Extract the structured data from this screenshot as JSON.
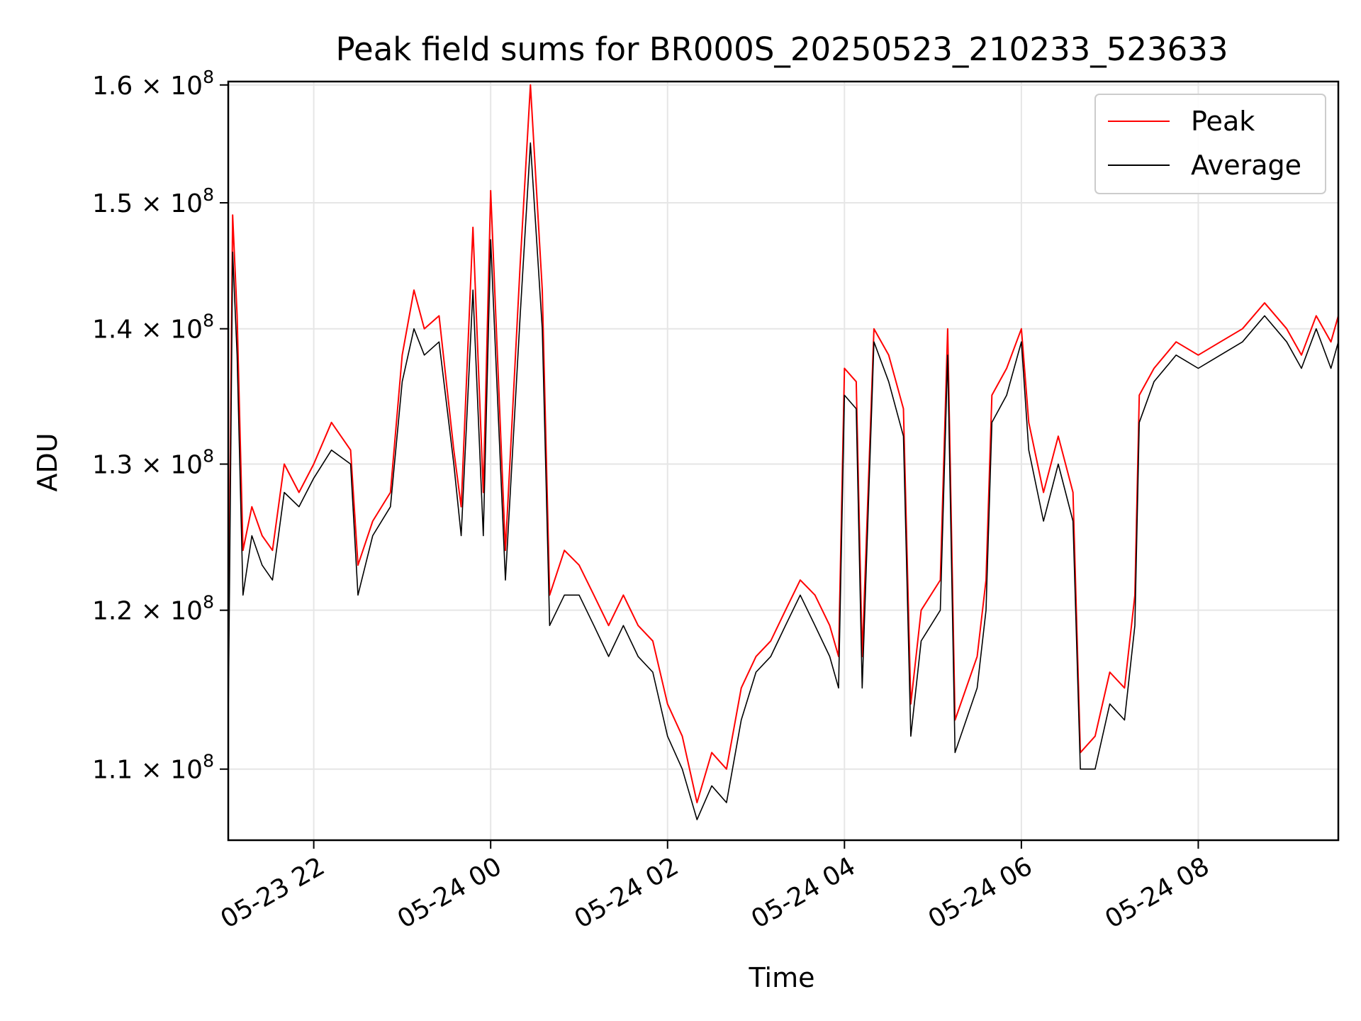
{
  "chart_data": {
    "type": "line",
    "title": "Peak field sums for BR000S_20250523_210233_523633",
    "xlabel": "Time",
    "ylabel": "ADU",
    "yscale": "log",
    "ylim": [
      105800000,
      160300000
    ],
    "xlim": [
      "2025-05-23 21:02",
      "2025-05-24 09:35"
    ],
    "grid": true,
    "legend_position": "top-right",
    "x_ticks": [
      {
        "t": "2025-05-23 22:00",
        "label": "05-23 22"
      },
      {
        "t": "2025-05-24 00:00",
        "label": "05-24 00"
      },
      {
        "t": "2025-05-24 02:00",
        "label": "05-24 02"
      },
      {
        "t": "2025-05-24 04:00",
        "label": "05-24 04"
      },
      {
        "t": "2025-05-24 06:00",
        "label": "05-24 06"
      },
      {
        "t": "2025-05-24 08:00",
        "label": "05-24 08"
      }
    ],
    "y_ticks": [
      {
        "v": 110000000,
        "mant": "1.1",
        "exp": "8"
      },
      {
        "v": 120000000,
        "mant": "1.2",
        "exp": "8"
      },
      {
        "v": 130000000,
        "mant": "1.3",
        "exp": "8"
      },
      {
        "v": 140000000,
        "mant": "1.4",
        "exp": "8"
      },
      {
        "v": 150000000,
        "mant": "1.5",
        "exp": "8"
      },
      {
        "v": 160000000,
        "mant": "1.6",
        "exp": "8"
      }
    ],
    "series": [
      {
        "name": "Peak",
        "color": "#ff0000",
        "x": [
          "2025-05-23 21:02",
          "2025-05-23 21:05",
          "2025-05-23 21:08",
          "2025-05-23 21:12",
          "2025-05-23 21:18",
          "2025-05-23 21:25",
          "2025-05-23 21:32",
          "2025-05-23 21:40",
          "2025-05-23 21:50",
          "2025-05-23 22:00",
          "2025-05-23 22:12",
          "2025-05-23 22:25",
          "2025-05-23 22:30",
          "2025-05-23 22:40",
          "2025-05-23 22:52",
          "2025-05-23 23:00",
          "2025-05-23 23:08",
          "2025-05-23 23:15",
          "2025-05-23 23:25",
          "2025-05-23 23:35",
          "2025-05-23 23:40",
          "2025-05-23 23:48",
          "2025-05-23 23:55",
          "2025-05-24 00:00",
          "2025-05-24 00:10",
          "2025-05-24 00:20",
          "2025-05-24 00:27",
          "2025-05-24 00:35",
          "2025-05-24 00:40",
          "2025-05-24 00:50",
          "2025-05-24 01:00",
          "2025-05-24 01:10",
          "2025-05-24 01:20",
          "2025-05-24 01:30",
          "2025-05-24 01:40",
          "2025-05-24 01:50",
          "2025-05-24 02:00",
          "2025-05-24 02:10",
          "2025-05-24 02:20",
          "2025-05-24 02:30",
          "2025-05-24 02:40",
          "2025-05-24 02:50",
          "2025-05-24 03:00",
          "2025-05-24 03:10",
          "2025-05-24 03:20",
          "2025-05-24 03:30",
          "2025-05-24 03:40",
          "2025-05-24 03:50",
          "2025-05-24 03:56",
          "2025-05-24 04:00",
          "2025-05-24 04:08",
          "2025-05-24 04:12",
          "2025-05-24 04:20",
          "2025-05-24 04:30",
          "2025-05-24 04:40",
          "2025-05-24 04:45",
          "2025-05-24 04:52",
          "2025-05-24 05:05",
          "2025-05-24 05:10",
          "2025-05-24 05:15",
          "2025-05-24 05:30",
          "2025-05-24 05:36",
          "2025-05-24 05:40",
          "2025-05-24 05:50",
          "2025-05-24 06:00",
          "2025-05-24 06:05",
          "2025-05-24 06:15",
          "2025-05-24 06:25",
          "2025-05-24 06:35",
          "2025-05-24 06:40",
          "2025-05-24 06:50",
          "2025-05-24 07:00",
          "2025-05-24 07:10",
          "2025-05-24 07:17",
          "2025-05-24 07:20",
          "2025-05-24 07:30",
          "2025-05-24 07:45",
          "2025-05-24 08:00",
          "2025-05-24 08:15",
          "2025-05-24 08:30",
          "2025-05-24 08:45",
          "2025-05-24 09:00",
          "2025-05-24 09:10",
          "2025-05-24 09:20",
          "2025-05-24 09:30",
          "2025-05-24 09:35"
        ],
        "y": [
          116000000,
          149000000,
          141000000,
          124000000,
          127000000,
          125000000,
          124000000,
          130000000,
          128000000,
          130000000,
          133000000,
          131000000,
          123000000,
          126000000,
          128000000,
          138000000,
          143000000,
          140000000,
          141000000,
          131000000,
          127000000,
          148000000,
          128000000,
          151000000,
          124000000,
          145000000,
          160000000,
          143000000,
          121000000,
          124000000,
          123000000,
          121000000,
          119000000,
          121000000,
          119000000,
          118000000,
          114000000,
          112000000,
          108000000,
          111000000,
          110000000,
          115000000,
          117000000,
          118000000,
          120000000,
          122000000,
          121000000,
          119000000,
          117000000,
          137000000,
          136000000,
          117000000,
          140000000,
          138000000,
          134000000,
          114000000,
          120000000,
          122000000,
          140000000,
          113000000,
          117000000,
          122000000,
          135000000,
          137000000,
          140000000,
          133000000,
          128000000,
          132000000,
          128000000,
          111000000,
          112000000,
          116000000,
          115000000,
          121000000,
          135000000,
          137000000,
          139000000,
          138000000,
          139000000,
          140000000,
          142000000,
          140000000,
          138000000,
          141000000,
          139000000,
          141000000
        ]
      },
      {
        "name": "Average",
        "color": "#000000",
        "x": [
          "2025-05-23 21:02",
          "2025-05-23 21:05",
          "2025-05-23 21:08",
          "2025-05-23 21:12",
          "2025-05-23 21:18",
          "2025-05-23 21:25",
          "2025-05-23 21:32",
          "2025-05-23 21:40",
          "2025-05-23 21:50",
          "2025-05-23 22:00",
          "2025-05-23 22:12",
          "2025-05-23 22:25",
          "2025-05-23 22:30",
          "2025-05-23 22:40",
          "2025-05-23 22:52",
          "2025-05-23 23:00",
          "2025-05-23 23:08",
          "2025-05-23 23:15",
          "2025-05-23 23:25",
          "2025-05-23 23:35",
          "2025-05-23 23:40",
          "2025-05-23 23:48",
          "2025-05-23 23:55",
          "2025-05-24 00:00",
          "2025-05-24 00:10",
          "2025-05-24 00:20",
          "2025-05-24 00:27",
          "2025-05-24 00:35",
          "2025-05-24 00:40",
          "2025-05-24 00:50",
          "2025-05-24 01:00",
          "2025-05-24 01:10",
          "2025-05-24 01:20",
          "2025-05-24 01:30",
          "2025-05-24 01:40",
          "2025-05-24 01:50",
          "2025-05-24 02:00",
          "2025-05-24 02:10",
          "2025-05-24 02:20",
          "2025-05-24 02:30",
          "2025-05-24 02:40",
          "2025-05-24 02:50",
          "2025-05-24 03:00",
          "2025-05-24 03:10",
          "2025-05-24 03:20",
          "2025-05-24 03:30",
          "2025-05-24 03:40",
          "2025-05-24 03:50",
          "2025-05-24 03:56",
          "2025-05-24 04:00",
          "2025-05-24 04:08",
          "2025-05-24 04:12",
          "2025-05-24 04:20",
          "2025-05-24 04:30",
          "2025-05-24 04:40",
          "2025-05-24 04:45",
          "2025-05-24 04:52",
          "2025-05-24 05:05",
          "2025-05-24 05:10",
          "2025-05-24 05:15",
          "2025-05-24 05:30",
          "2025-05-24 05:36",
          "2025-05-24 05:40",
          "2025-05-24 05:50",
          "2025-05-24 06:00",
          "2025-05-24 06:05",
          "2025-05-24 06:15",
          "2025-05-24 06:25",
          "2025-05-24 06:35",
          "2025-05-24 06:40",
          "2025-05-24 06:50",
          "2025-05-24 07:00",
          "2025-05-24 07:10",
          "2025-05-24 07:17",
          "2025-05-24 07:20",
          "2025-05-24 07:30",
          "2025-05-24 07:45",
          "2025-05-24 08:00",
          "2025-05-24 08:15",
          "2025-05-24 08:30",
          "2025-05-24 08:45",
          "2025-05-24 09:00",
          "2025-05-24 09:10",
          "2025-05-24 09:20",
          "2025-05-24 09:30",
          "2025-05-24 09:35"
        ],
        "y": [
          113000000,
          146000000,
          138000000,
          121000000,
          125000000,
          123000000,
          122000000,
          128000000,
          127000000,
          129000000,
          131000000,
          130000000,
          121000000,
          125000000,
          127000000,
          136000000,
          140000000,
          138000000,
          139000000,
          130000000,
          125000000,
          143000000,
          125000000,
          147000000,
          122000000,
          141000000,
          155000000,
          140000000,
          119000000,
          121000000,
          121000000,
          119000000,
          117000000,
          119000000,
          117000000,
          116000000,
          112000000,
          110000000,
          107000000,
          109000000,
          108000000,
          113000000,
          116000000,
          117000000,
          119000000,
          121000000,
          119000000,
          117000000,
          115000000,
          135000000,
          134000000,
          115000000,
          139000000,
          136000000,
          132000000,
          112000000,
          118000000,
          120000000,
          138000000,
          111000000,
          115000000,
          120000000,
          133000000,
          135000000,
          139000000,
          131000000,
          126000000,
          130000000,
          126000000,
          110000000,
          110000000,
          114000000,
          113000000,
          119000000,
          133000000,
          136000000,
          138000000,
          137000000,
          138000000,
          139000000,
          141000000,
          139000000,
          137000000,
          140000000,
          137000000,
          139000000
        ]
      }
    ]
  }
}
